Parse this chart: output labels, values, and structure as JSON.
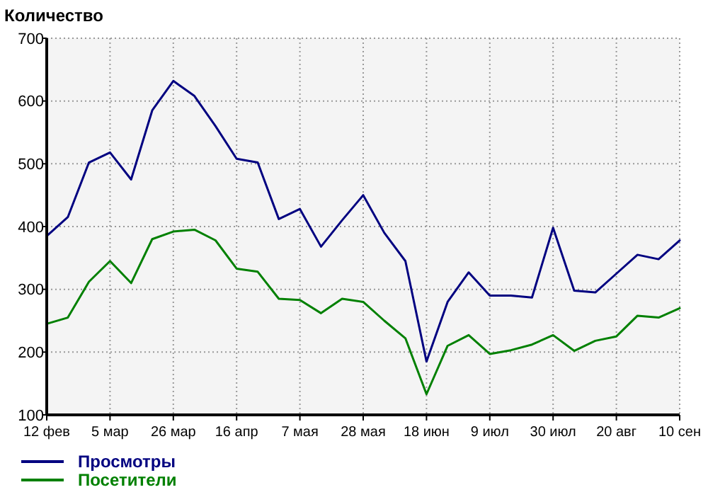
{
  "chart_data": {
    "type": "line",
    "title": "Количество",
    "categories": [
      "12 фев",
      null,
      null,
      "5 мар",
      null,
      null,
      "26 мар",
      null,
      null,
      "16 апр",
      null,
      null,
      "7 мая",
      null,
      null,
      "28 мая",
      null,
      null,
      "18 июн",
      null,
      null,
      "9 июл",
      null,
      null,
      "30 июл",
      null,
      null,
      "20 авг",
      null,
      null,
      "10 сен"
    ],
    "series": [
      {
        "name": "Просмотры",
        "color": "#000080",
        "values": [
          385,
          415,
          502,
          518,
          475,
          585,
          632,
          608,
          560,
          508,
          502,
          412,
          428,
          368,
          410,
          450,
          390,
          345,
          185,
          280,
          327,
          290,
          290,
          287,
          398,
          298,
          295,
          325,
          355,
          348,
          378
        ]
      },
      {
        "name": "Посетители",
        "color": "#008000",
        "values": [
          245,
          255,
          312,
          345,
          310,
          380,
          392,
          395,
          378,
          333,
          328,
          285,
          283,
          262,
          285,
          280,
          250,
          222,
          133,
          210,
          227,
          197,
          203,
          212,
          227,
          202,
          218,
          225,
          258,
          255,
          270
        ]
      }
    ],
    "ylim": [
      100,
      700
    ],
    "yticks": [
      100,
      200,
      300,
      400,
      500,
      600,
      700
    ],
    "grid": true,
    "legend": "bottom left",
    "marker": "none",
    "line_style": "solid"
  }
}
